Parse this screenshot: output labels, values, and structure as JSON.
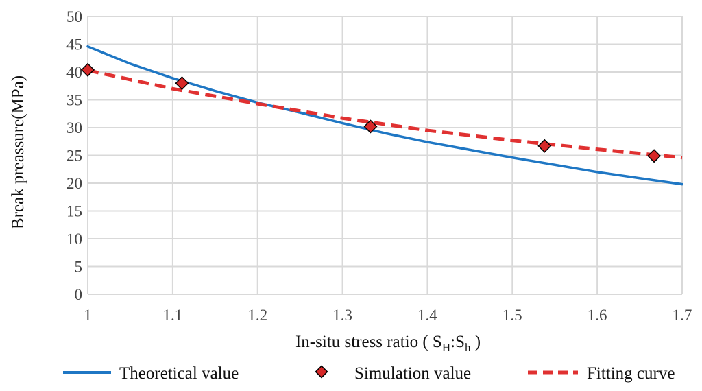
{
  "chart_data": {
    "type": "line",
    "title": "",
    "xlabel": {
      "prefix": "In-situ stress ratio ( ",
      "main1": "S",
      "sub1": "H",
      "sep": ":",
      "main2": "S",
      "sub2": "h",
      "suffix": " )"
    },
    "ylabel": "Break preassure(MPa)",
    "xlim": [
      1,
      1.7
    ],
    "ylim": [
      0,
      50
    ],
    "x_ticks": [
      "1",
      "1.1",
      "1.2",
      "1.3",
      "1.4",
      "1.5",
      "1.6",
      "1.7"
    ],
    "y_ticks": [
      "0",
      "5",
      "10",
      "15",
      "20",
      "25",
      "30",
      "35",
      "40",
      "45",
      "50"
    ],
    "grid": true,
    "legend_position": "bottom",
    "colors": {
      "theoretical": "#1f77c4",
      "simulation_fill": "#d62828",
      "simulation_edge": "#000000",
      "fitting": "#e03131",
      "grid": "#d9d9d9"
    },
    "series": [
      {
        "name": "Theoretical value",
        "style": "solid",
        "x": [
          1.0,
          1.05,
          1.1,
          1.15,
          1.2,
          1.25,
          1.3,
          1.35,
          1.4,
          1.45,
          1.5,
          1.55,
          1.6,
          1.65,
          1.7
        ],
        "y": [
          44.6,
          41.5,
          38.9,
          36.6,
          34.5,
          32.7,
          30.8,
          29.0,
          27.4,
          26.0,
          24.6,
          23.3,
          22.0,
          20.9,
          19.8
        ]
      },
      {
        "name": "Simulation value",
        "style": "marker",
        "x": [
          1.0,
          1.111,
          1.333,
          1.538,
          1.667
        ],
        "y": [
          40.4,
          38.0,
          30.2,
          26.7,
          24.9
        ]
      },
      {
        "name": "Fitting curve",
        "style": "dashed",
        "x": [
          1.0,
          1.1,
          1.2,
          1.3,
          1.4,
          1.5,
          1.6,
          1.7
        ],
        "y": [
          40.3,
          37.0,
          34.3,
          31.7,
          29.5,
          27.7,
          26.1,
          24.6
        ]
      }
    ]
  }
}
